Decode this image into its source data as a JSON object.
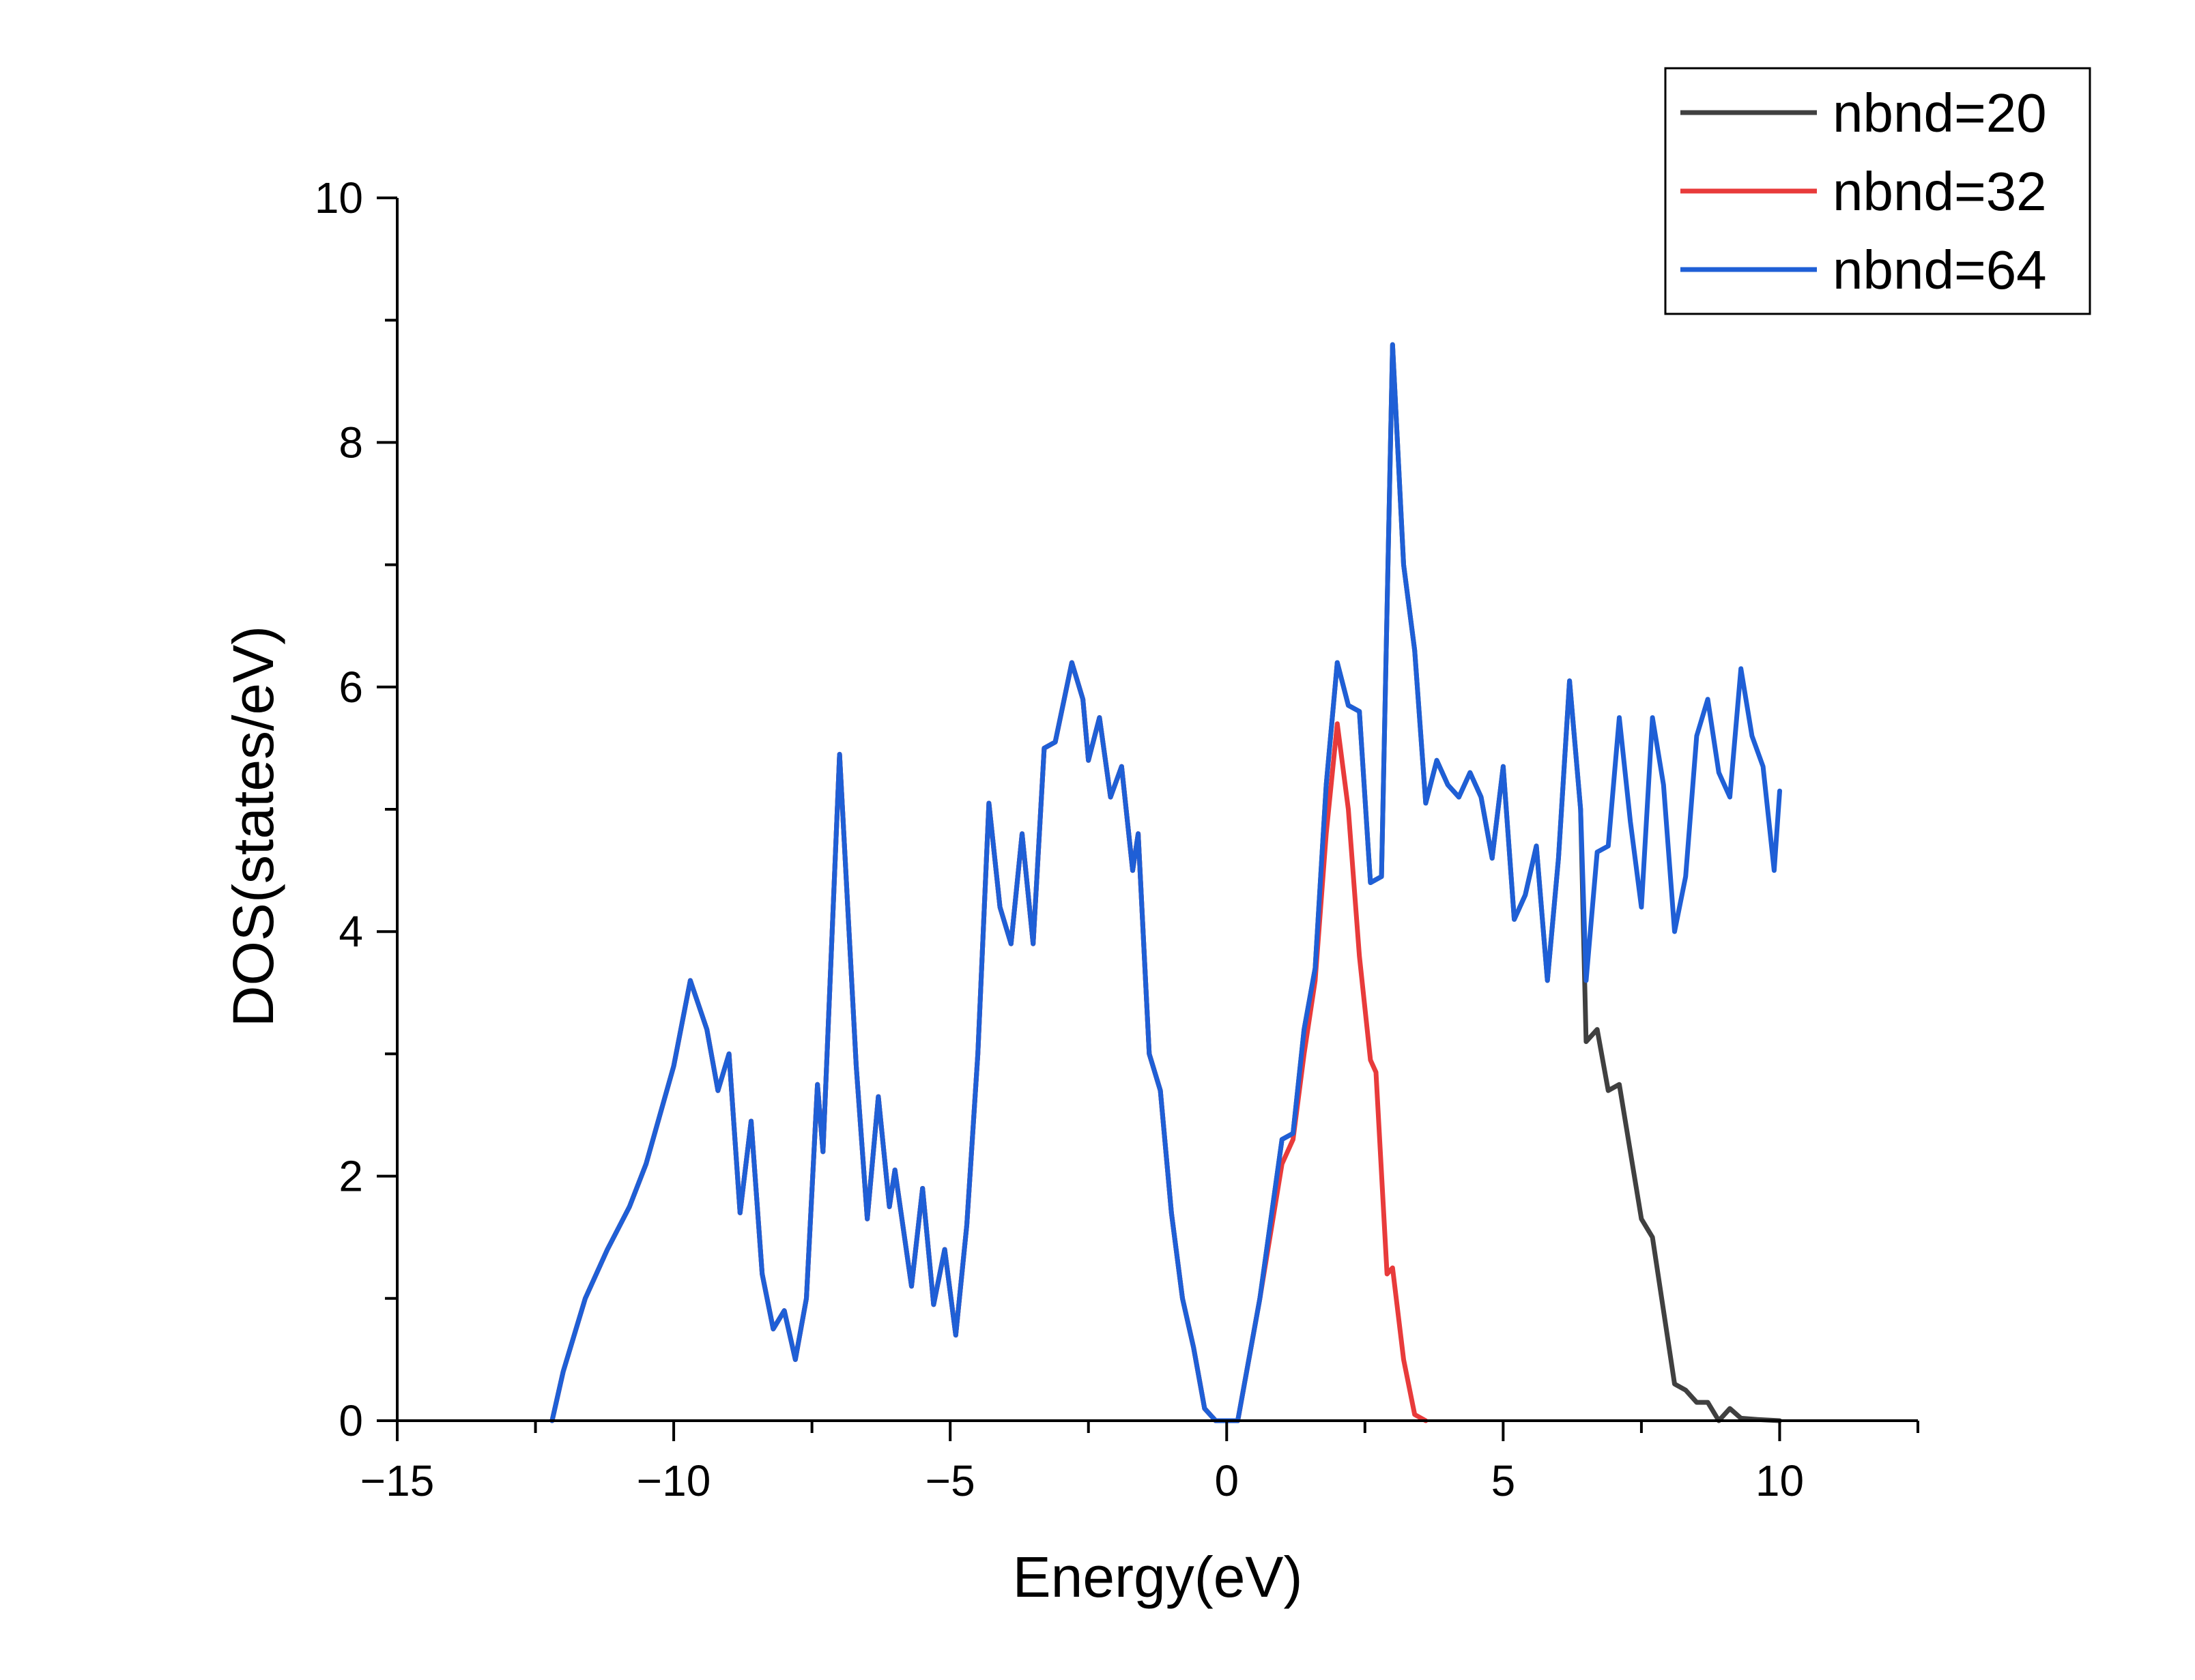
{
  "chart_data": {
    "type": "line",
    "xlabel": "Energy(eV)",
    "ylabel": "DOS(states/eV)",
    "xlim": [
      -15,
      12.5
    ],
    "ylim": [
      0,
      10
    ],
    "x_ticks": [
      -15,
      -10,
      -5,
      0,
      5,
      10
    ],
    "x_tick_labels": [
      "−15",
      "−10",
      "−5",
      "0",
      "5",
      "10"
    ],
    "y_ticks": [
      0,
      2,
      4,
      6,
      8,
      10
    ],
    "y_tick_labels": [
      "0",
      "2",
      "4",
      "6",
      "8",
      "10"
    ],
    "grid": false,
    "legend_position": "top-right",
    "series": [
      {
        "name": "nbnd=20",
        "color": "#404040",
        "points": [
          [
            -12.2,
            0
          ],
          [
            -12.0,
            0.4
          ],
          [
            -11.6,
            1.0
          ],
          [
            -11.2,
            1.4
          ],
          [
            -10.8,
            1.75
          ],
          [
            -10.5,
            2.1
          ],
          [
            -10.0,
            2.9
          ],
          [
            -9.7,
            3.6
          ],
          [
            -9.4,
            3.2
          ],
          [
            -9.2,
            2.7
          ],
          [
            -9.0,
            3.0
          ],
          [
            -8.8,
            1.7
          ],
          [
            -8.6,
            2.45
          ],
          [
            -8.4,
            1.2
          ],
          [
            -8.2,
            0.75
          ],
          [
            -8.0,
            0.9
          ],
          [
            -7.8,
            0.5
          ],
          [
            -7.6,
            1.0
          ],
          [
            -7.4,
            2.75
          ],
          [
            -7.3,
            2.2
          ],
          [
            -7.0,
            5.45
          ],
          [
            -6.7,
            2.9
          ],
          [
            -6.5,
            1.65
          ],
          [
            -6.3,
            2.65
          ],
          [
            -6.1,
            1.75
          ],
          [
            -6.0,
            2.05
          ],
          [
            -5.7,
            1.1
          ],
          [
            -5.5,
            1.9
          ],
          [
            -5.3,
            0.95
          ],
          [
            -5.1,
            1.4
          ],
          [
            -4.9,
            0.7
          ],
          [
            -4.7,
            1.6
          ],
          [
            -4.5,
            3.0
          ],
          [
            -4.3,
            5.05
          ],
          [
            -4.1,
            4.2
          ],
          [
            -3.9,
            3.9
          ],
          [
            -3.7,
            4.8
          ],
          [
            -3.5,
            3.9
          ],
          [
            -3.3,
            5.5
          ],
          [
            -3.1,
            5.55
          ],
          [
            -2.8,
            6.2
          ],
          [
            -2.6,
            5.9
          ],
          [
            -2.5,
            5.4
          ],
          [
            -2.3,
            5.75
          ],
          [
            -2.1,
            5.1
          ],
          [
            -1.9,
            5.35
          ],
          [
            -1.7,
            4.5
          ],
          [
            -1.6,
            4.8
          ],
          [
            -1.4,
            3.0
          ],
          [
            -1.2,
            2.7
          ],
          [
            -1.0,
            1.7
          ],
          [
            -0.8,
            1.0
          ],
          [
            -0.6,
            0.6
          ],
          [
            -0.4,
            0.1
          ],
          [
            -0.2,
            0.0
          ],
          [
            0.2,
            0.0
          ],
          [
            0.6,
            1.0
          ],
          [
            1.0,
            2.3
          ],
          [
            1.2,
            2.35
          ],
          [
            1.4,
            3.2
          ],
          [
            1.6,
            3.7
          ],
          [
            1.8,
            5.2
          ],
          [
            2.0,
            6.2
          ],
          [
            2.2,
            5.85
          ],
          [
            2.4,
            5.8
          ],
          [
            2.6,
            4.4
          ],
          [
            2.8,
            4.45
          ],
          [
            3.0,
            8.8
          ],
          [
            3.2,
            7.0
          ],
          [
            3.4,
            6.3
          ],
          [
            3.6,
            5.05
          ],
          [
            3.8,
            5.4
          ],
          [
            4.0,
            5.2
          ],
          [
            4.2,
            5.1
          ],
          [
            4.4,
            5.3
          ],
          [
            4.6,
            5.1
          ],
          [
            4.8,
            4.6
          ],
          [
            5.0,
            5.35
          ],
          [
            5.2,
            4.1
          ],
          [
            5.4,
            4.3
          ],
          [
            5.6,
            4.7
          ],
          [
            5.8,
            3.6
          ],
          [
            6.0,
            4.6
          ],
          [
            6.2,
            6.05
          ],
          [
            6.4,
            5.0
          ],
          [
            6.5,
            3.1
          ],
          [
            6.7,
            3.2
          ],
          [
            6.9,
            2.7
          ],
          [
            7.1,
            2.75
          ],
          [
            7.3,
            2.2
          ],
          [
            7.5,
            1.65
          ],
          [
            7.7,
            1.5
          ],
          [
            7.9,
            0.9
          ],
          [
            8.1,
            0.3
          ],
          [
            8.3,
            0.25
          ],
          [
            8.5,
            0.15
          ],
          [
            8.7,
            0.15
          ],
          [
            8.9,
            0.0
          ],
          [
            9.1,
            0.1
          ],
          [
            9.3,
            0.02
          ],
          [
            9.6,
            0.01
          ],
          [
            10.0,
            0.0
          ]
        ]
      },
      {
        "name": "nbnd=32",
        "color": "#e83b3b",
        "points": [
          [
            -12.2,
            0
          ],
          [
            -12.0,
            0.4
          ],
          [
            -11.6,
            1.0
          ],
          [
            -11.2,
            1.4
          ],
          [
            -10.8,
            1.75
          ],
          [
            -10.5,
            2.1
          ],
          [
            -10.0,
            2.9
          ],
          [
            -9.7,
            3.6
          ],
          [
            -9.4,
            3.2
          ],
          [
            -9.2,
            2.7
          ],
          [
            -9.0,
            3.0
          ],
          [
            -8.8,
            1.7
          ],
          [
            -8.6,
            2.45
          ],
          [
            -8.4,
            1.2
          ],
          [
            -8.2,
            0.75
          ],
          [
            -8.0,
            0.9
          ],
          [
            -7.8,
            0.5
          ],
          [
            -7.6,
            1.0
          ],
          [
            -7.4,
            2.75
          ],
          [
            -7.3,
            2.2
          ],
          [
            -7.0,
            5.45
          ],
          [
            -6.7,
            2.9
          ],
          [
            -6.5,
            1.65
          ],
          [
            -6.3,
            2.65
          ],
          [
            -6.1,
            1.75
          ],
          [
            -6.0,
            2.05
          ],
          [
            -5.7,
            1.1
          ],
          [
            -5.5,
            1.9
          ],
          [
            -5.3,
            0.95
          ],
          [
            -5.1,
            1.4
          ],
          [
            -4.9,
            0.7
          ],
          [
            -4.7,
            1.6
          ],
          [
            -4.5,
            3.0
          ],
          [
            -4.3,
            5.05
          ],
          [
            -4.1,
            4.2
          ],
          [
            -3.9,
            3.9
          ],
          [
            -3.7,
            4.8
          ],
          [
            -3.5,
            3.9
          ],
          [
            -3.3,
            5.5
          ],
          [
            -3.1,
            5.55
          ],
          [
            -2.8,
            6.2
          ],
          [
            -2.6,
            5.9
          ],
          [
            -2.5,
            5.4
          ],
          [
            -2.3,
            5.75
          ],
          [
            -2.1,
            5.1
          ],
          [
            -1.9,
            5.35
          ],
          [
            -1.7,
            4.5
          ],
          [
            -1.6,
            4.8
          ],
          [
            -1.4,
            3.0
          ],
          [
            -1.2,
            2.7
          ],
          [
            -1.0,
            1.7
          ],
          [
            -0.8,
            1.0
          ],
          [
            -0.6,
            0.6
          ],
          [
            -0.4,
            0.1
          ],
          [
            -0.2,
            0.0
          ],
          [
            0.2,
            0.0
          ],
          [
            0.6,
            1.0
          ],
          [
            1.0,
            2.1
          ],
          [
            1.2,
            2.3
          ],
          [
            1.4,
            3.0
          ],
          [
            1.6,
            3.6
          ],
          [
            1.8,
            4.8
          ],
          [
            2.0,
            5.7
          ],
          [
            2.2,
            5.0
          ],
          [
            2.4,
            3.8
          ],
          [
            2.6,
            2.95
          ],
          [
            2.7,
            2.85
          ],
          [
            2.9,
            1.2
          ],
          [
            3.0,
            1.25
          ],
          [
            3.2,
            0.5
          ],
          [
            3.4,
            0.05
          ],
          [
            3.6,
            0.0
          ]
        ]
      },
      {
        "name": "nbnd=64",
        "color": "#1f5fd6",
        "points": [
          [
            -12.2,
            0
          ],
          [
            -12.0,
            0.4
          ],
          [
            -11.6,
            1.0
          ],
          [
            -11.2,
            1.4
          ],
          [
            -10.8,
            1.75
          ],
          [
            -10.5,
            2.1
          ],
          [
            -10.0,
            2.9
          ],
          [
            -9.7,
            3.6
          ],
          [
            -9.4,
            3.2
          ],
          [
            -9.2,
            2.7
          ],
          [
            -9.0,
            3.0
          ],
          [
            -8.8,
            1.7
          ],
          [
            -8.6,
            2.45
          ],
          [
            -8.4,
            1.2
          ],
          [
            -8.2,
            0.75
          ],
          [
            -8.0,
            0.9
          ],
          [
            -7.8,
            0.5
          ],
          [
            -7.6,
            1.0
          ],
          [
            -7.4,
            2.75
          ],
          [
            -7.3,
            2.2
          ],
          [
            -7.0,
            5.45
          ],
          [
            -6.7,
            2.9
          ],
          [
            -6.5,
            1.65
          ],
          [
            -6.3,
            2.65
          ],
          [
            -6.1,
            1.75
          ],
          [
            -6.0,
            2.05
          ],
          [
            -5.7,
            1.1
          ],
          [
            -5.5,
            1.9
          ],
          [
            -5.3,
            0.95
          ],
          [
            -5.1,
            1.4
          ],
          [
            -4.9,
            0.7
          ],
          [
            -4.7,
            1.6
          ],
          [
            -4.5,
            3.0
          ],
          [
            -4.3,
            5.05
          ],
          [
            -4.1,
            4.2
          ],
          [
            -3.9,
            3.9
          ],
          [
            -3.7,
            4.8
          ],
          [
            -3.5,
            3.9
          ],
          [
            -3.3,
            5.5
          ],
          [
            -3.1,
            5.55
          ],
          [
            -2.8,
            6.2
          ],
          [
            -2.6,
            5.9
          ],
          [
            -2.5,
            5.4
          ],
          [
            -2.3,
            5.75
          ],
          [
            -2.1,
            5.1
          ],
          [
            -1.9,
            5.35
          ],
          [
            -1.7,
            4.5
          ],
          [
            -1.6,
            4.8
          ],
          [
            -1.4,
            3.0
          ],
          [
            -1.2,
            2.7
          ],
          [
            -1.0,
            1.7
          ],
          [
            -0.8,
            1.0
          ],
          [
            -0.6,
            0.6
          ],
          [
            -0.4,
            0.1
          ],
          [
            -0.2,
            0.0
          ],
          [
            0.2,
            0.0
          ],
          [
            0.6,
            1.0
          ],
          [
            1.0,
            2.3
          ],
          [
            1.2,
            2.35
          ],
          [
            1.4,
            3.2
          ],
          [
            1.6,
            3.7
          ],
          [
            1.8,
            5.2
          ],
          [
            2.0,
            6.2
          ],
          [
            2.2,
            5.85
          ],
          [
            2.4,
            5.8
          ],
          [
            2.6,
            4.4
          ],
          [
            2.8,
            4.45
          ],
          [
            3.0,
            8.8
          ],
          [
            3.2,
            7.0
          ],
          [
            3.4,
            6.3
          ],
          [
            3.6,
            5.05
          ],
          [
            3.8,
            5.4
          ],
          [
            4.0,
            5.2
          ],
          [
            4.2,
            5.1
          ],
          [
            4.4,
            5.3
          ],
          [
            4.6,
            5.1
          ],
          [
            4.8,
            4.6
          ],
          [
            5.0,
            5.35
          ],
          [
            5.2,
            4.1
          ],
          [
            5.4,
            4.3
          ],
          [
            5.6,
            4.7
          ],
          [
            5.8,
            3.6
          ],
          [
            6.0,
            4.6
          ],
          [
            6.2,
            6.05
          ],
          [
            6.4,
            5.0
          ],
          [
            6.5,
            3.6
          ],
          [
            6.7,
            4.65
          ],
          [
            6.9,
            4.7
          ],
          [
            7.1,
            5.75
          ],
          [
            7.3,
            4.9
          ],
          [
            7.5,
            4.2
          ],
          [
            7.7,
            5.75
          ],
          [
            7.9,
            5.2
          ],
          [
            8.1,
            4.0
          ],
          [
            8.3,
            4.45
          ],
          [
            8.5,
            5.6
          ],
          [
            8.7,
            5.9
          ],
          [
            8.9,
            5.3
          ],
          [
            9.1,
            5.1
          ],
          [
            9.3,
            6.15
          ],
          [
            9.5,
            5.6
          ],
          [
            9.7,
            5.35
          ],
          [
            9.9,
            4.5
          ],
          [
            10.0,
            5.15
          ]
        ]
      }
    ]
  }
}
